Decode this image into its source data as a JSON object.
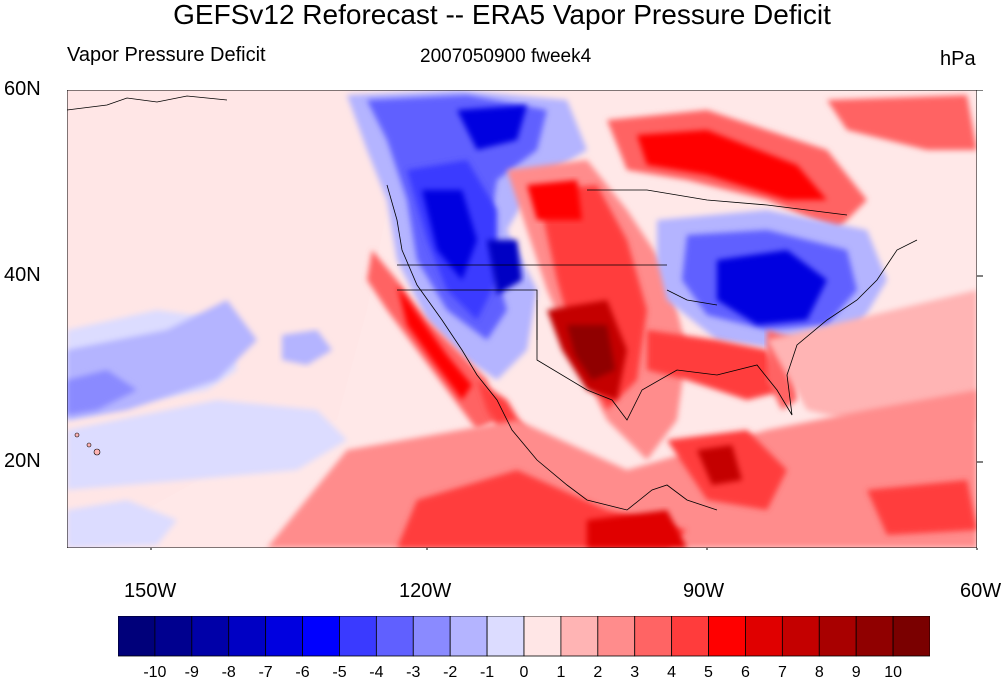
{
  "title": "GEFSv12 Reforecast -- ERA5 Vapor Pressure Deficit",
  "left_label": "Vapor Pressure Deficit",
  "center_label": "2007050900 fweek4",
  "right_label": "hPa",
  "lat_labels": [
    "60N",
    "40N",
    "20N"
  ],
  "lon_labels": [
    "150W",
    "120W",
    "90W",
    "60W"
  ],
  "colorbar": {
    "labels": [
      "-10",
      "-9",
      "-8",
      "-7",
      "-6",
      "-5",
      "-4",
      "-3",
      "-2",
      "-1",
      "0",
      "1",
      "2",
      "3",
      "4",
      "5",
      "6",
      "7",
      "8",
      "9",
      "10"
    ],
    "colors": [
      "#00007a",
      "#00008f",
      "#0000a8",
      "#0000c4",
      "#0000e0",
      "#0000ff",
      "#3a3aff",
      "#6060ff",
      "#8a8aff",
      "#b4b4ff",
      "#dcdcff",
      "#ffe6e6",
      "#ffb4b4",
      "#ff8c8c",
      "#ff6464",
      "#ff3c3c",
      "#ff0000",
      "#e00000",
      "#c40000",
      "#a80000",
      "#900000",
      "#7a0000"
    ]
  },
  "map_extent": {
    "lon": [
      -160,
      -60
    ],
    "lat": [
      10,
      60
    ]
  }
}
